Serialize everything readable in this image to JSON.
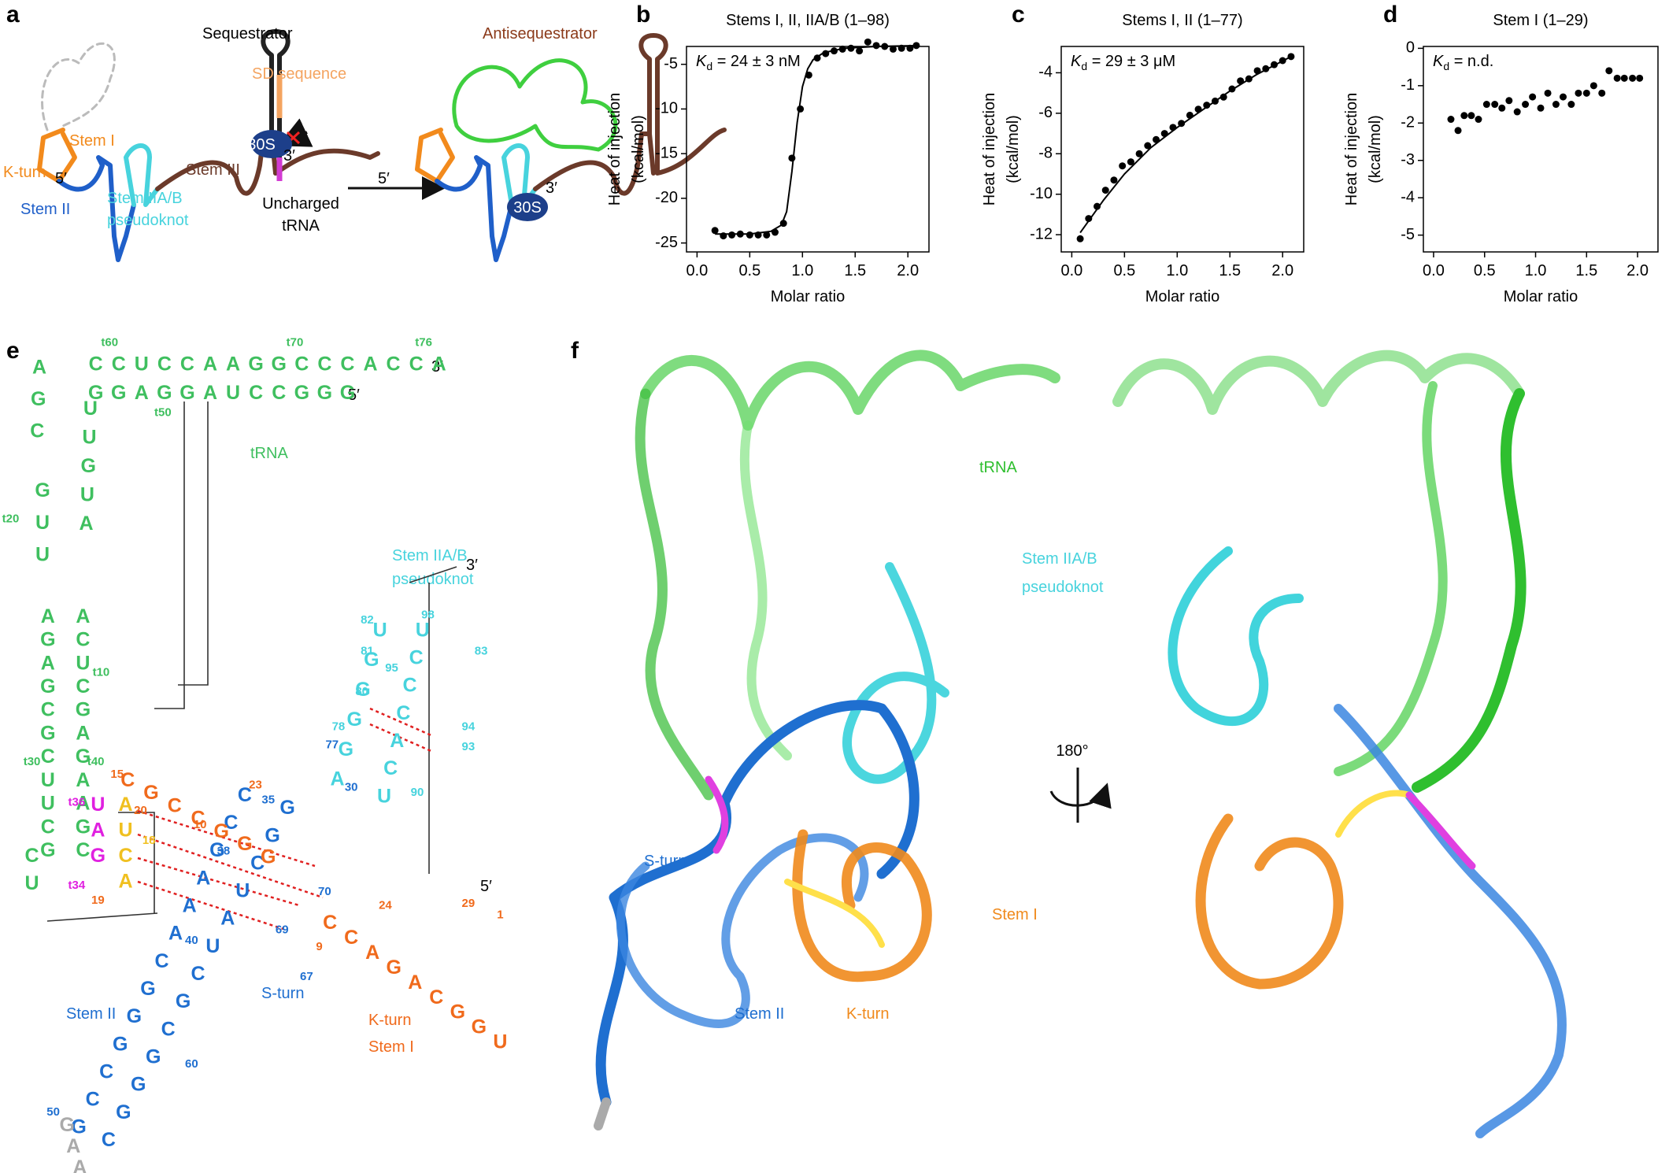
{
  "panel_letters": [
    "a",
    "b",
    "c",
    "d",
    "e",
    "f"
  ],
  "panel_a": {
    "sequestrator": "Sequestrator",
    "antisequestrator": "Antisequestrator",
    "sd": "SD sequence",
    "stem_i": "Stem I",
    "k_turn": "K-turn",
    "stem_ii": "Stem II",
    "stem_iia_b": [
      "Stem IIA/B",
      "pseudoknot"
    ],
    "stem_iii": "Stem III",
    "arrow": [
      "Uncharged",
      "tRNA"
    ],
    "ribosome": [
      "30S",
      "30S"
    ],
    "ends": [
      "5′",
      "3′",
      "5′",
      "3′"
    ]
  },
  "chart_data": [
    {
      "type": "scatter",
      "title": "Stems I, II, IIA/B (1–98)",
      "ylabel": [
        "Heat of injection",
        "(kcal/mol)"
      ],
      "xlabel": "Molar ratio",
      "annotation": {
        "symbol": "K",
        "subscript": "d",
        "text": " = 24 ± 3 nM"
      },
      "xlim": [
        -0.1,
        2.2
      ],
      "ylim": [
        -26,
        -3
      ],
      "xticks": [
        {
          "value": 0,
          "label": "0.0"
        },
        0.5,
        {
          "value": 1,
          "label": "1.0"
        },
        1.5,
        {
          "value": 2,
          "label": "2.0"
        }
      ],
      "yticks": [
        -25,
        -20,
        -15,
        -10,
        -5
      ],
      "color": "#000000",
      "x": [
        0.17,
        0.25,
        0.33,
        0.41,
        0.5,
        0.58,
        0.66,
        0.74,
        0.82,
        0.9,
        0.98,
        1.06,
        1.14,
        1.22,
        1.3,
        1.38,
        1.46,
        1.54,
        1.62,
        1.7,
        1.78,
        1.86,
        1.94,
        2.02,
        2.08
      ],
      "values": [
        -23.6,
        -24.2,
        -24.1,
        -24.0,
        -24.1,
        -24.1,
        -24.1,
        -23.8,
        -22.8,
        -15.5,
        -10,
        -6.2,
        -4.3,
        -3.8,
        -3.5,
        -3.3,
        -3.2,
        -3.5,
        -2.5,
        -2.9,
        -3.0,
        -3.3,
        -3.2,
        -3.2,
        -2.9
      ],
      "fit": {
        "x": [
          0.17,
          0.5,
          0.7,
          0.8,
          0.85,
          0.9,
          0.95,
          1.0,
          1.05,
          1.1,
          1.2,
          1.4,
          1.7,
          2.1
        ],
        "values": [
          -24.0,
          -24.0,
          -23.7,
          -23,
          -21.5,
          -17,
          -11.5,
          -7.5,
          -5.5,
          -4.5,
          -3.7,
          -3.2,
          -3.0,
          -2.9
        ]
      }
    },
    {
      "type": "scatter",
      "title": "Stems I, II (1–77)",
      "ylabel": [
        "Heat of injection",
        "(kcal/mol)"
      ],
      "xlabel": "Molar ratio",
      "annotation": {
        "symbol": "K",
        "subscript": "d",
        "text": " = 29 ± 3 μM"
      },
      "xlim": [
        -0.1,
        2.2
      ],
      "ylim": [
        -12.85,
        -2.7
      ],
      "xticks": [
        {
          "value": 0,
          "label": "0.0"
        },
        0.5,
        {
          "value": 1,
          "label": "1.0"
        },
        1.5,
        {
          "value": 2,
          "label": "2.0"
        }
      ],
      "yticks": [
        -12,
        -10,
        -8,
        -6,
        -4
      ],
      "color": "#000000",
      "x": [
        0.08,
        0.16,
        0.24,
        0.32,
        0.4,
        0.48,
        0.56,
        0.64,
        0.72,
        0.8,
        0.88,
        0.96,
        1.04,
        1.12,
        1.2,
        1.28,
        1.36,
        1.44,
        1.52,
        1.6,
        1.68,
        1.76,
        1.84,
        1.92,
        2.0,
        2.08
      ],
      "values": [
        -12.2,
        -11.2,
        -10.6,
        -9.8,
        -9.3,
        -8.6,
        -8.4,
        -8.0,
        -7.6,
        -7.3,
        -7.0,
        -6.7,
        -6.5,
        -6.1,
        -5.8,
        -5.6,
        -5.4,
        -5.2,
        -4.8,
        -4.4,
        -4.3,
        -3.9,
        -3.8,
        -3.6,
        -3.4,
        -3.2
      ],
      "fit": {
        "x": [
          0.08,
          0.3,
          0.5,
          0.75,
          1.0,
          1.25,
          1.5,
          1.75,
          2.08
        ],
        "values": [
          -11.9,
          -10.3,
          -9.0,
          -7.7,
          -6.7,
          -5.8,
          -4.9,
          -4.1,
          -3.2
        ]
      }
    },
    {
      "type": "scatter",
      "title": "Stem I (1–29)",
      "ylabel": [
        "Heat of injection",
        "(kcal/mol)"
      ],
      "xlabel": "Molar ratio",
      "annotation": {
        "symbol": "K",
        "subscript": "d",
        "text": " = n.d."
      },
      "xlim": [
        -0.1,
        2.2
      ],
      "ylim": [
        -5.45,
        0.05
      ],
      "xticks": [
        {
          "value": 0,
          "label": "0.0"
        },
        0.5,
        {
          "value": 1,
          "label": "1.0"
        },
        1.5,
        {
          "value": 2,
          "label": "2.0"
        }
      ],
      "yticks": [
        -5,
        -4,
        -3,
        -2,
        -1,
        0
      ],
      "color": "#000000",
      "x": [
        0.17,
        0.24,
        0.3,
        0.37,
        0.44,
        0.52,
        0.6,
        0.67,
        0.74,
        0.82,
        0.9,
        0.97,
        1.05,
        1.12,
        1.2,
        1.27,
        1.35,
        1.42,
        1.5,
        1.57,
        1.65,
        1.72,
        1.8,
        1.87,
        1.95,
        2.02
      ],
      "values": [
        -1.9,
        -2.2,
        -1.8,
        -1.8,
        -1.9,
        -1.5,
        -1.5,
        -1.6,
        -1.4,
        -1.7,
        -1.5,
        -1.3,
        -1.6,
        -1.2,
        -1.5,
        -1.3,
        -1.5,
        -1.2,
        -1.2,
        -1.0,
        -1.2,
        -0.6,
        -0.8,
        -0.8,
        -0.8,
        -0.8
      ]
    }
  ],
  "panel_e": {
    "strands": [
      [
        "C",
        "C",
        "U",
        "C",
        "C",
        "A",
        "A",
        "G",
        "G",
        "C",
        "C",
        "C",
        "A",
        "C",
        "C",
        "A"
      ],
      [
        "G",
        "G",
        "A",
        "G",
        "G",
        "A",
        "U",
        "C",
        "C",
        "G",
        "G",
        "G"
      ],
      [
        "A",
        "G",
        "A",
        "G",
        "C",
        "G",
        "C",
        "U",
        "U",
        "C",
        "G"
      ],
      [
        "A",
        "C",
        "U",
        "C",
        "G",
        "A",
        "G",
        "A",
        "A",
        "G",
        "C"
      ],
      [
        "A",
        "G",
        "C"
      ],
      [
        "G",
        "U",
        "U"
      ],
      [
        "U",
        "U",
        "G",
        "U",
        "A"
      ],
      [
        "C",
        "U"
      ],
      [
        "U",
        "A",
        "G"
      ],
      [
        "A",
        "U",
        "C",
        "A"
      ],
      [
        "U",
        "G",
        "G",
        "G",
        "G",
        "A"
      ],
      [
        "U",
        "C",
        "C",
        "C",
        "A",
        "C",
        "U"
      ],
      [
        "C",
        "C",
        "G",
        "A",
        "A",
        "A",
        "C",
        "G",
        "G",
        "G",
        "C",
        "C",
        "G"
      ],
      [
        "G",
        "G",
        "C",
        "U",
        "A",
        "U",
        "C",
        "G",
        "C",
        "G",
        "G",
        "G",
        "C"
      ],
      [
        "C",
        "G",
        "C",
        "C",
        "G",
        "G",
        "G"
      ],
      [
        "C",
        "C",
        "A",
        "G",
        "A",
        "C",
        "G",
        "G",
        "U"
      ],
      [
        "G",
        "A",
        "A"
      ]
    ],
    "numbers": [
      "t60",
      "t70",
      "t76",
      "t50",
      "t20",
      "t10",
      "t30",
      "t40",
      "t36",
      "t34",
      "15",
      "20",
      "23",
      "10",
      "18",
      "19",
      "35",
      "38",
      "70",
      "69",
      "67",
      "9",
      "24",
      "29",
      "1",
      "40",
      "60",
      "50",
      "30",
      "77",
      "78",
      "80",
      "81",
      "82",
      "98",
      "83",
      "95",
      "94",
      "93",
      "90"
    ],
    "ends": [
      "3′",
      "5′",
      "3′",
      "5′"
    ],
    "trna": "tRNA",
    "stem_iia_b": [
      "Stem IIA/B",
      "pseudoknot"
    ],
    "stem_ii": "Stem II",
    "s_turn": "S-turn",
    "k_turn": [
      "K-turn",
      "Stem I"
    ]
  },
  "panel_f": {
    "trna": "tRNA",
    "stem_iia_b": [
      "Stem IIA/B",
      "pseudoknot"
    ],
    "rotation": "180°",
    "s_turn": "S-turn",
    "stem_i": "Stem I",
    "stem_ii": "Stem II",
    "k_turn": "K-turn"
  }
}
